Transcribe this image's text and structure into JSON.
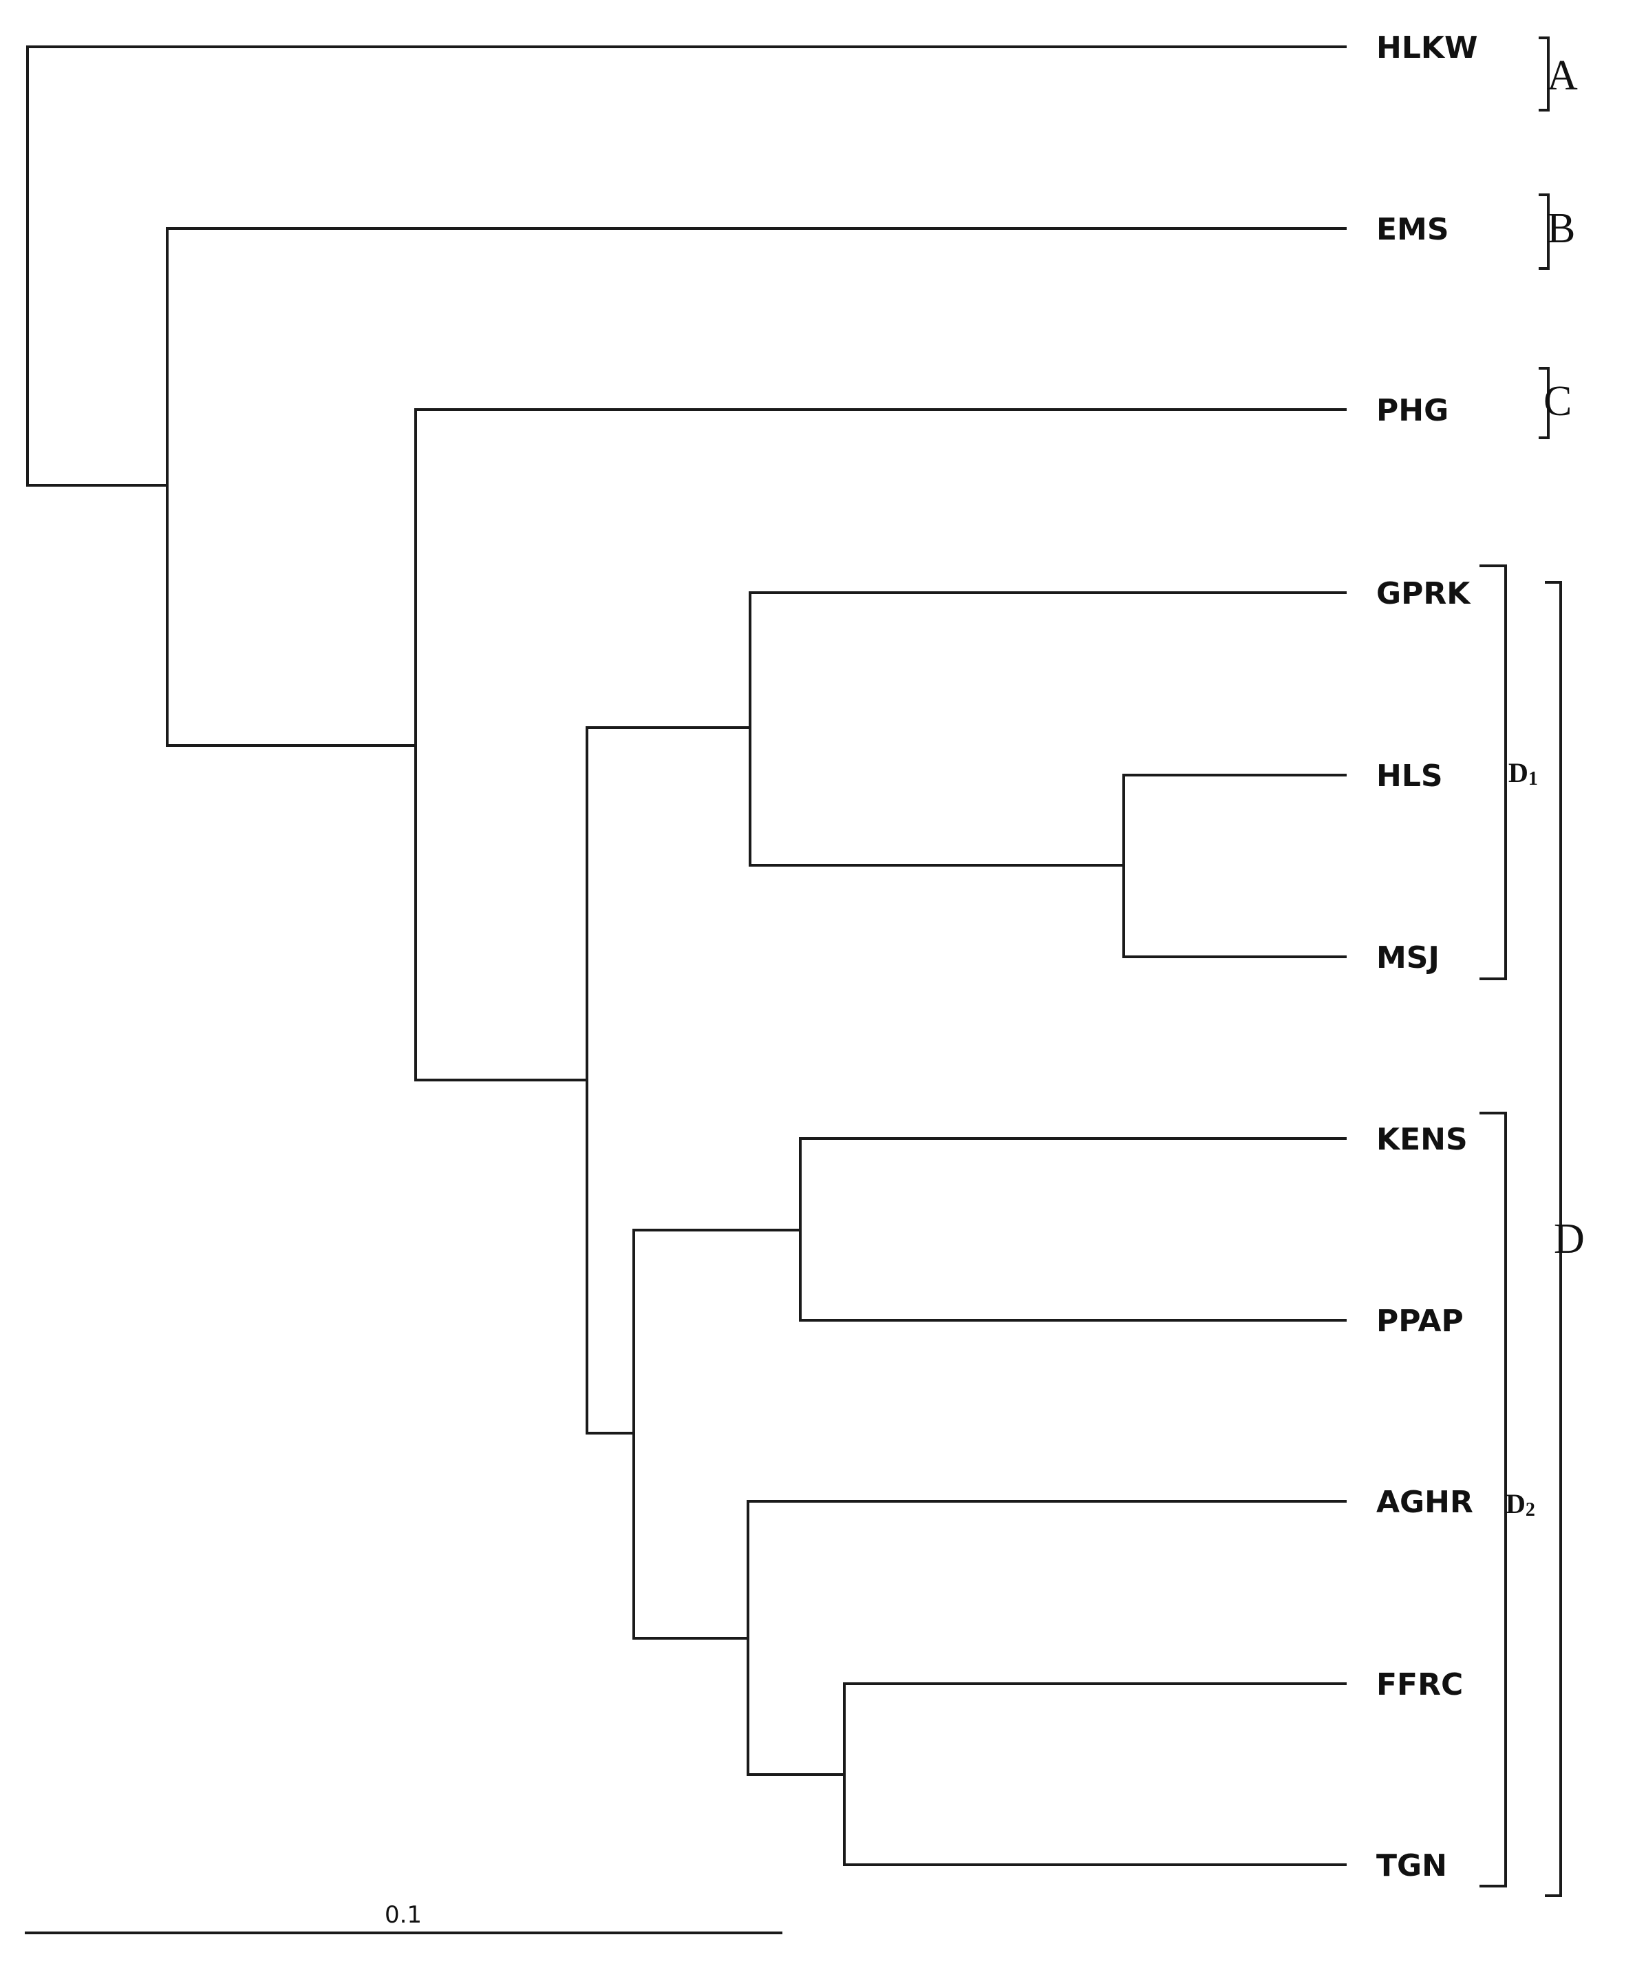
{
  "taxa": [
    "HLKW",
    "EMS",
    "PHG",
    "GPRK",
    "HLS",
    "MSJ",
    "KENS",
    "PPAP",
    "AGHR",
    "FFRC",
    "TGN"
  ],
  "groups": [
    {
      "label": "A",
      "members": [
        "HLKW"
      ]
    },
    {
      "label": "B",
      "members": [
        "EMS"
      ]
    },
    {
      "label": "C",
      "members": [
        "PHG"
      ]
    },
    {
      "label": "D",
      "members": [
        "GPRK",
        "HLS",
        "MSJ",
        "KENS",
        "PPAP",
        "AGHR",
        "FFRC",
        "TGN"
      ]
    }
  ],
  "subgroups": [
    {
      "label": "D",
      "subscript": "1",
      "members": [
        "GPRK",
        "HLS",
        "MSJ"
      ]
    },
    {
      "label": "D",
      "subscript": "2",
      "members": [
        "KENS",
        "PPAP",
        "AGHR",
        "FFRC",
        "TGN"
      ]
    }
  ],
  "scale_bar": {
    "label": "0.1",
    "value": 0.1
  }
}
